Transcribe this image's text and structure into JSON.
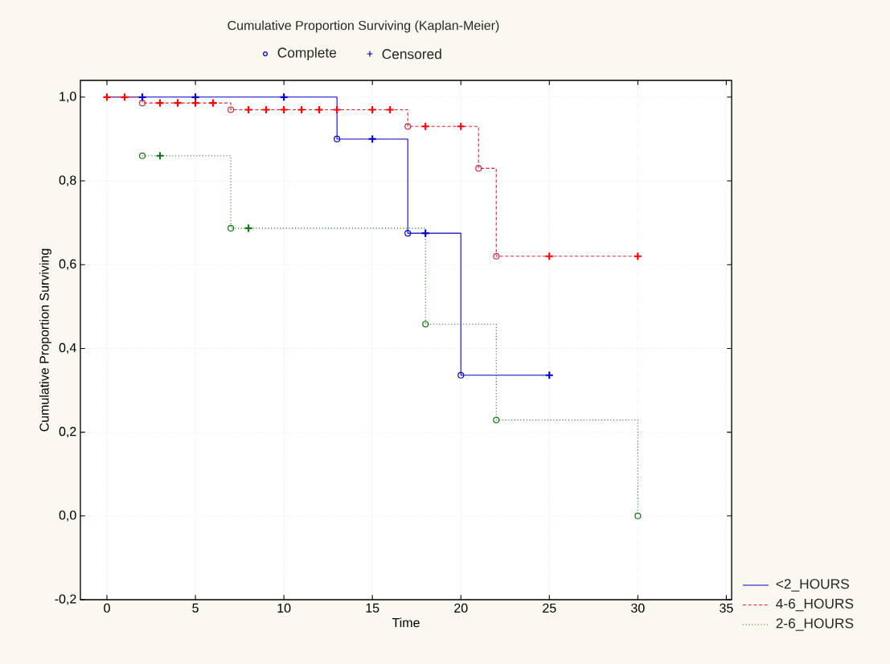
{
  "chart_data": {
    "type": "step",
    "title": "Cumulative Proportion Surviving (Kaplan-Meier)",
    "xlabel": "Time",
    "ylabel": "Cumulative Proportion Surviving",
    "xlim": [
      -1.5,
      35.3
    ],
    "ylim": [
      -0.2,
      1.04
    ],
    "xticks": [
      0,
      5,
      10,
      15,
      20,
      25,
      30,
      35
    ],
    "yticks": [
      {
        "value": -0.2,
        "label": "-0,2"
      },
      {
        "value": 0,
        "label": "0,0"
      },
      {
        "value": 0.2,
        "label": "0,2"
      },
      {
        "value": 0.4,
        "label": "0,4"
      },
      {
        "value": 0.6,
        "label": "0,6"
      },
      {
        "value": 0.8,
        "label": "0,8"
      },
      {
        "value": 1.0,
        "label": "1,0"
      }
    ],
    "grid": true,
    "legend": "right",
    "series": [
      {
        "name": "<2_HOURS",
        "color": "#0000cc",
        "line_style": "solid",
        "x": [
          0,
          13,
          17,
          20,
          25
        ],
        "values": [
          1.0,
          0.9,
          0.675,
          0.336,
          0.336
        ]
      },
      {
        "name": "4-6_HOURS",
        "color": "#dd2233",
        "line_style": "dashed",
        "x": [
          0,
          2,
          7,
          17,
          21,
          22,
          30
        ],
        "values": [
          1.0,
          0.986,
          0.97,
          0.93,
          0.83,
          0.62,
          0.62
        ]
      },
      {
        "name": "2-6_HOURS",
        "color": "#117711",
        "line_style": "dotted",
        "x": [
          2,
          7,
          18,
          22,
          30
        ],
        "values": [
          0.86,
          0.687,
          0.458,
          0.229,
          0.0
        ]
      },
      {
        "name": "Complete",
        "type": "scatter",
        "marker": "circle",
        "color": "#0000cc",
        "x": [
          13,
          17,
          20,
          2,
          7,
          17,
          21,
          22,
          2,
          7,
          18,
          22,
          30
        ],
        "values": [
          0.9,
          0.675,
          0.336,
          0.986,
          0.97,
          0.93,
          0.83,
          0.62,
          0.86,
          0.687,
          0.458,
          0.229,
          0.0
        ],
        "colors": [
          "#0000cc",
          "#0000cc",
          "#0000cc",
          "#dd2233",
          "#dd2233",
          "#dd2233",
          "#dd2233",
          "#dd2233",
          "#117711",
          "#117711",
          "#117711",
          "#117711",
          "#117711"
        ]
      },
      {
        "name": "Censored",
        "type": "scatter",
        "marker": "cross",
        "color": "#0000cc",
        "x": [
          2,
          5,
          10,
          15,
          18,
          25,
          0,
          1,
          3,
          4,
          5,
          6,
          8,
          9,
          10,
          11,
          12,
          13,
          15,
          16,
          18,
          20,
          25,
          30,
          3,
          8
        ],
        "values": [
          1.0,
          1.0,
          1.0,
          0.9,
          0.675,
          0.336,
          1.0,
          1.0,
          0.986,
          0.986,
          0.986,
          0.986,
          0.97,
          0.97,
          0.97,
          0.97,
          0.97,
          0.97,
          0.97,
          0.97,
          0.93,
          0.93,
          0.62,
          0.62,
          0.86,
          0.687
        ],
        "colors": [
          "#0000cc",
          "#0000cc",
          "#0000cc",
          "#0000cc",
          "#0000cc",
          "#0000cc",
          "#ff0000",
          "#ff0000",
          "#ff0000",
          "#ff0000",
          "#ff0000",
          "#ff0000",
          "#ff0000",
          "#ff0000",
          "#ff0000",
          "#ff0000",
          "#ff0000",
          "#ff0000",
          "#ff0000",
          "#ff0000",
          "#ff0000",
          "#ff0000",
          "#ff0000",
          "#ff0000",
          "#117711",
          "#117711"
        ]
      }
    ]
  }
}
